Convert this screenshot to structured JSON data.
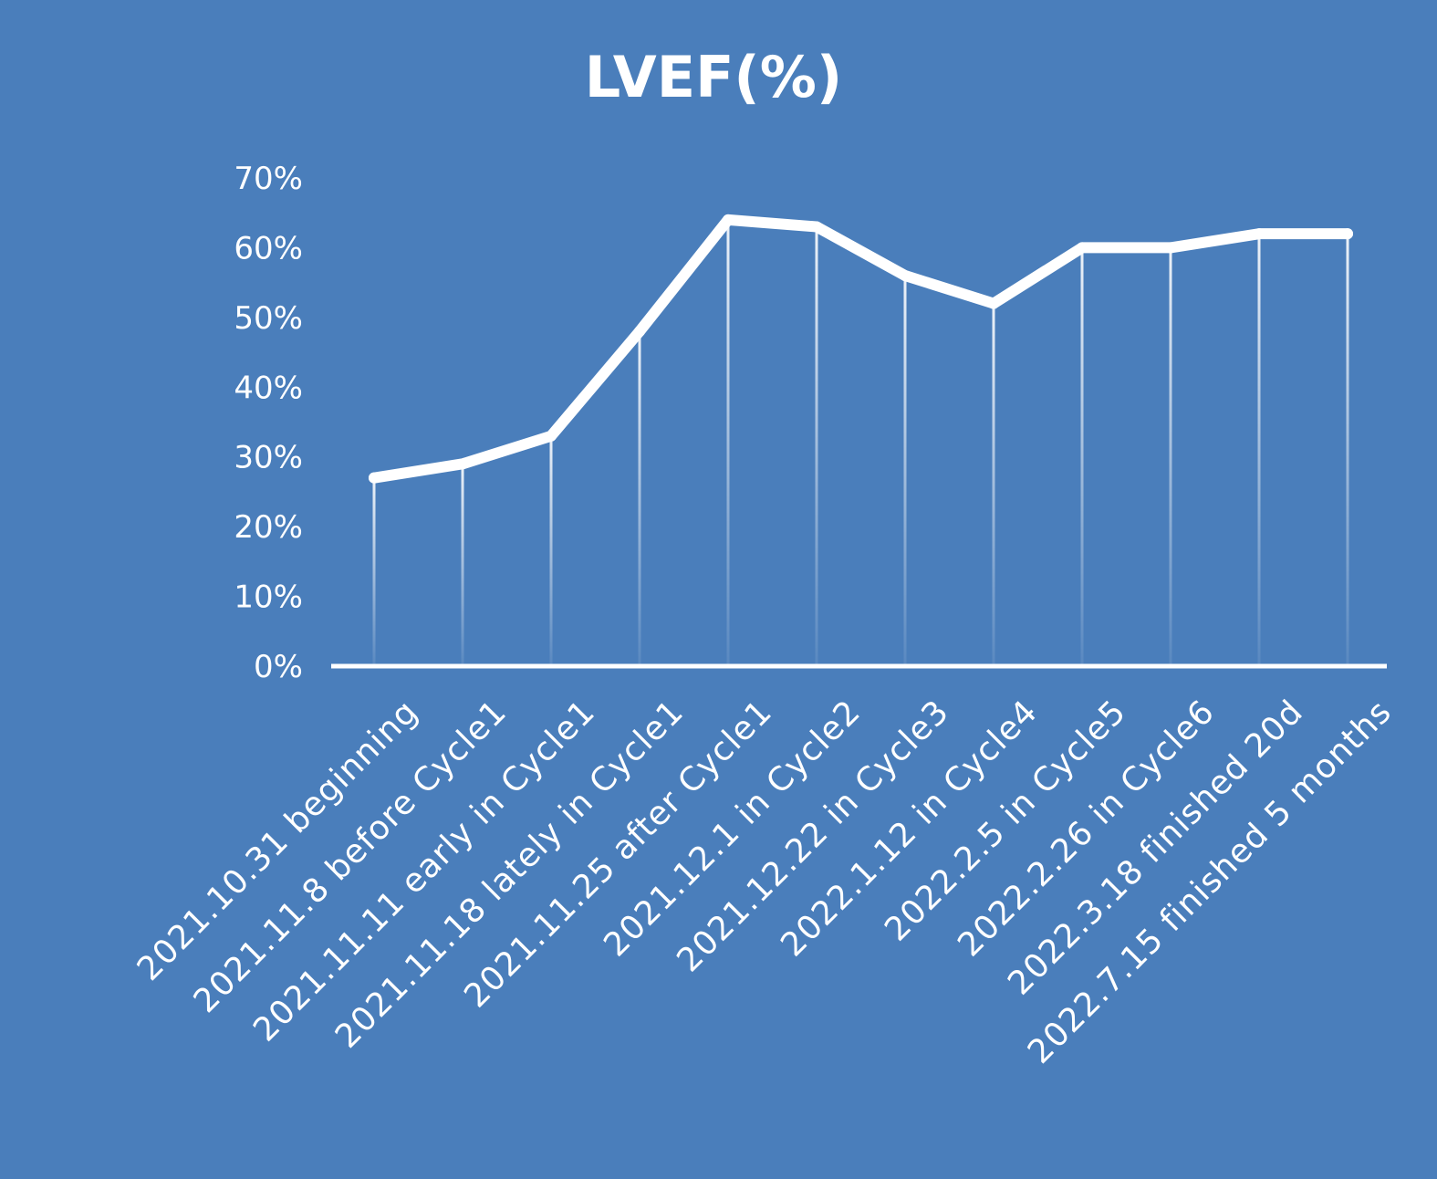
{
  "chart_data": {
    "type": "line",
    "title": "LVEF(%)",
    "xlabel": "",
    "ylabel": "",
    "categories": [
      "2021.10.31 beginning",
      "2021.11.8 before Cycle1",
      "2021.11.11 early in Cycle1",
      "2021.11.18 lately in Cycle1",
      "2021.11.25 after Cycle1",
      "2021.12.1   in Cycle2",
      "2021.12.22 in Cycle3",
      "2022.1.12 in Cycle4",
      "2022.2.5 in Cycle5",
      "2022.2.26 in Cycle6",
      "2022.3.18 finished 20d",
      "2022.7.15 finished 5 months"
    ],
    "series": [
      {
        "values": [
          27,
          29,
          33,
          48,
          64,
          63,
          56,
          52,
          60,
          60,
          62,
          62
        ]
      }
    ],
    "ylim": [
      0,
      70
    ],
    "yticks": [
      "0%",
      "10%",
      "20%",
      "30%",
      "40%",
      "50%",
      "60%",
      "70%"
    ],
    "drop_lines": true,
    "grid": false,
    "legend": "none",
    "colors": {
      "background": "#4a7ebb",
      "line": "#ffffff",
      "axis": "#ffffff",
      "text": "#ffffff"
    }
  }
}
